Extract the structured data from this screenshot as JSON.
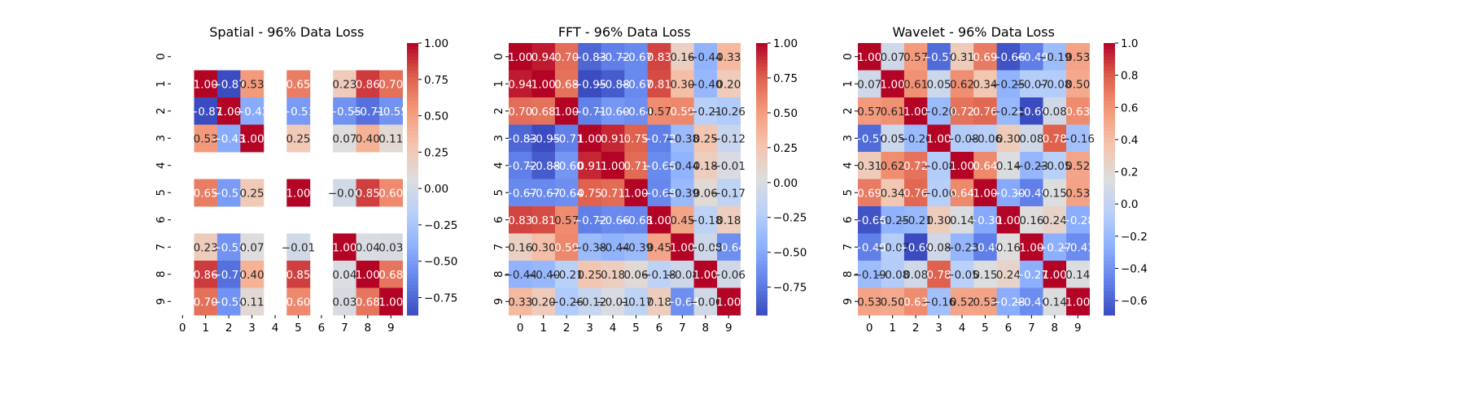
{
  "chart_data": [
    {
      "type": "heatmap",
      "title": "Spatial - 96% Data Loss",
      "x_ticks": [
        "0",
        "1",
        "2",
        "3",
        "4",
        "5",
        "6",
        "7",
        "8",
        "9"
      ],
      "y_ticks": [
        "0",
        "1",
        "2",
        "3",
        "4",
        "5",
        "6",
        "7",
        "8",
        "9"
      ],
      "colormap": "coolwarm",
      "vmin": -0.87,
      "vmax": 1.0,
      "colorbar_ticks": [
        "1.00",
        "0.75",
        "0.50",
        "0.25",
        "0.00",
        "−0.25",
        "−0.50",
        "−0.75"
      ],
      "matrix": [
        [
          null,
          null,
          null,
          null,
          null,
          null,
          null,
          null,
          null,
          null
        ],
        [
          null,
          1.0,
          -0.87,
          0.53,
          null,
          0.65,
          null,
          0.23,
          0.86,
          0.7
        ],
        [
          null,
          -0.87,
          1.0,
          -0.43,
          null,
          -0.51,
          null,
          -0.55,
          -0.71,
          -0.55
        ],
        [
          null,
          0.53,
          -0.43,
          1.0,
          null,
          0.25,
          null,
          0.07,
          0.4,
          0.11
        ],
        [
          null,
          null,
          null,
          null,
          null,
          null,
          null,
          null,
          null,
          null
        ],
        [
          null,
          0.65,
          -0.51,
          0.25,
          null,
          1.0,
          null,
          -0.01,
          0.85,
          0.6
        ],
        [
          null,
          null,
          null,
          null,
          null,
          null,
          null,
          null,
          null,
          null
        ],
        [
          null,
          0.23,
          -0.55,
          0.07,
          null,
          -0.01,
          null,
          1.0,
          0.04,
          0.03
        ],
        [
          null,
          0.86,
          -0.71,
          0.4,
          null,
          0.85,
          null,
          0.04,
          1.0,
          0.68
        ],
        [
          null,
          0.7,
          -0.55,
          0.11,
          null,
          0.6,
          null,
          0.03,
          0.68,
          1.0
        ]
      ]
    },
    {
      "type": "heatmap",
      "title": "FFT - 96% Data Loss",
      "x_ticks": [
        "0",
        "1",
        "2",
        "3",
        "4",
        "5",
        "6",
        "7",
        "8",
        "9"
      ],
      "y_ticks": [
        "0",
        "1",
        "2",
        "3",
        "4",
        "5",
        "6",
        "7",
        "8",
        "9"
      ],
      "colormap": "coolwarm",
      "vmin": -0.95,
      "vmax": 1.0,
      "colorbar_ticks": [
        "1.00",
        "0.75",
        "0.50",
        "0.25",
        "0.00",
        "−0.25",
        "−0.50",
        "−0.75"
      ],
      "matrix": [
        [
          1.0,
          0.94,
          0.7,
          -0.83,
          -0.72,
          -0.67,
          0.83,
          0.16,
          -0.44,
          0.33
        ],
        [
          0.94,
          1.0,
          0.68,
          -0.95,
          -0.88,
          -0.67,
          0.81,
          0.3,
          -0.4,
          0.2
        ],
        [
          0.7,
          0.68,
          1.0,
          -0.71,
          -0.6,
          -0.64,
          0.57,
          0.59,
          -0.21,
          -0.26
        ],
        [
          -0.83,
          -0.95,
          -0.71,
          1.0,
          0.91,
          0.75,
          -0.72,
          -0.38,
          0.25,
          -0.12
        ],
        [
          -0.72,
          -0.88,
          -0.6,
          0.91,
          1.0,
          0.71,
          -0.66,
          -0.44,
          0.18,
          -0.01
        ],
        [
          -0.67,
          -0.67,
          -0.64,
          0.75,
          0.71,
          1.0,
          -0.68,
          -0.39,
          0.06,
          -0.17
        ],
        [
          0.83,
          0.81,
          0.57,
          -0.72,
          -0.66,
          -0.68,
          1.0,
          0.45,
          -0.18,
          0.18
        ],
        [
          0.16,
          0.3,
          0.59,
          -0.38,
          -0.44,
          -0.39,
          0.45,
          1.0,
          -0.08,
          -0.64
        ],
        [
          -0.44,
          -0.4,
          -0.21,
          0.25,
          0.18,
          0.06,
          -0.18,
          -0.08,
          1.0,
          -0.06
        ],
        [
          0.33,
          0.2,
          -0.26,
          -0.12,
          -0.01,
          -0.17,
          0.18,
          -0.64,
          -0.06,
          1.0
        ]
      ]
    },
    {
      "type": "heatmap",
      "title": "Wavelet - 96% Data Loss",
      "x_ticks": [
        "0",
        "1",
        "2",
        "3",
        "4",
        "5",
        "6",
        "7",
        "8",
        "9"
      ],
      "y_ticks": [
        "0",
        "1",
        "2",
        "3",
        "4",
        "5",
        "6",
        "7",
        "8",
        "9"
      ],
      "colormap": "coolwarm",
      "vmin": -0.69,
      "vmax": 1.0,
      "colorbar_ticks": [
        "1.0",
        "0.8",
        "0.6",
        "0.4",
        "0.2",
        "0.0",
        "−0.2",
        "−0.4",
        "−0.6"
      ],
      "matrix": [
        [
          1.0,
          0.07,
          0.57,
          -0.57,
          0.31,
          0.69,
          -0.66,
          -0.49,
          -0.19,
          0.53
        ],
        [
          0.07,
          1.0,
          0.61,
          0.05,
          0.62,
          0.34,
          -0.25,
          -0.07,
          -0.08,
          0.5
        ],
        [
          0.57,
          0.61,
          1.0,
          -0.2,
          0.72,
          0.76,
          -0.21,
          -0.69,
          0.08,
          0.63
        ],
        [
          -0.57,
          0.05,
          -0.2,
          1.0,
          -0.08,
          -0.06,
          0.3,
          0.08,
          0.78,
          -0.16
        ],
        [
          0.31,
          0.62,
          0.72,
          -0.08,
          1.0,
          0.64,
          0.14,
          -0.23,
          -0.05,
          0.52
        ],
        [
          0.69,
          0.34,
          0.76,
          -0.06,
          0.64,
          1.0,
          -0.3,
          -0.49,
          0.15,
          0.53
        ],
        [
          -0.66,
          -0.25,
          -0.21,
          0.3,
          0.14,
          -0.3,
          1.0,
          0.16,
          0.24,
          -0.28
        ],
        [
          -0.49,
          -0.07,
          -0.69,
          0.08,
          -0.23,
          -0.49,
          0.16,
          1.0,
          -0.27,
          -0.43
        ],
        [
          -0.19,
          -0.08,
          0.08,
          0.78,
          -0.05,
          0.15,
          0.24,
          -0.27,
          1.0,
          0.14
        ],
        [
          0.53,
          0.5,
          0.63,
          -0.16,
          0.52,
          0.53,
          -0.28,
          -0.43,
          0.14,
          1.0
        ]
      ]
    }
  ]
}
